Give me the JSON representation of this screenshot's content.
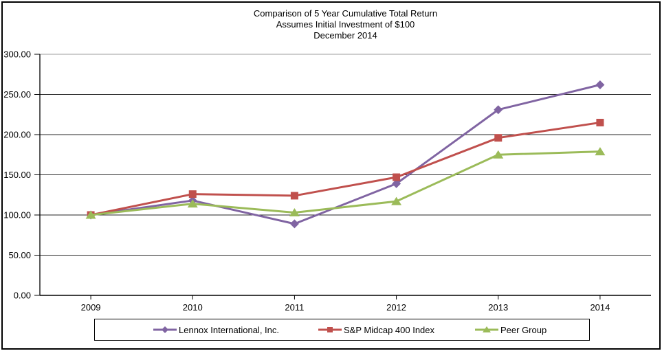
{
  "title": {
    "line1": "Comparison of 5 Year Cumulative Total Return",
    "line2": "Assumes Initial Investment of $100",
    "line3": "December 2014"
  },
  "chart_data": {
    "type": "line",
    "title": "Comparison of 5 Year Cumulative Total Return",
    "subtitle": "Assumes Initial Investment of $100",
    "date_label": "December 2014",
    "categories": [
      "2009",
      "2010",
      "2011",
      "2012",
      "2013",
      "2014"
    ],
    "series": [
      {
        "name": "Lennox International, Inc.",
        "marker": "diamond",
        "color": "#8064A2",
        "values": [
          100,
          118,
          89,
          139,
          231,
          262
        ]
      },
      {
        "name": "S&P Midcap 400 Index",
        "marker": "square",
        "color": "#C0504D",
        "values": [
          100,
          126,
          124,
          147,
          196,
          215
        ]
      },
      {
        "name": "Peer Group",
        "marker": "triangle",
        "color": "#9BBB59",
        "values": [
          100,
          114,
          103,
          117,
          175,
          179
        ]
      }
    ],
    "xlabel": "",
    "ylabel": "",
    "ylim": [
      0,
      300
    ],
    "ytick_step": 50,
    "ytick_labels": [
      "0.00",
      "50.00",
      "100.00",
      "150.00",
      "200.00",
      "250.00",
      "300.00"
    ],
    "grid": true,
    "legend_position": "bottom",
    "axis_color": "#000000",
    "grid_color": "#262626",
    "top_border_color": "#9e9e9e",
    "background": "#ffffff"
  }
}
